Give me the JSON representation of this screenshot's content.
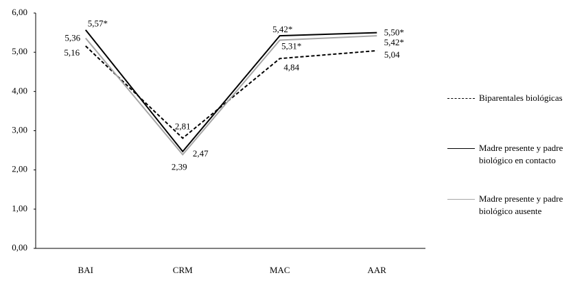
{
  "chart_data": {
    "type": "line",
    "categories": [
      "BAI",
      "CRM",
      "MAC",
      "AAR"
    ],
    "ylim": [
      0,
      6
    ],
    "yticks": [
      {
        "value": 0,
        "label": "0,00"
      },
      {
        "value": 1,
        "label": "1,00"
      },
      {
        "value": 2,
        "label": "2,00"
      },
      {
        "value": 3,
        "label": "3,00"
      },
      {
        "value": 4,
        "label": "4,00"
      },
      {
        "value": 5,
        "label": "5,00"
      },
      {
        "value": 6,
        "label": "6,00"
      }
    ],
    "grid": false,
    "legend": "right",
    "series": [
      {
        "name": "Biparentales biológicas",
        "color": "#000000",
        "dash": true,
        "values": [
          5.16,
          2.81,
          4.84,
          5.04
        ],
        "value_labels": [
          "5,16",
          "2,81",
          "4,84",
          "5,04"
        ]
      },
      {
        "name": "Madre presente y padre biológico en contacto",
        "color": "#000000",
        "dash": false,
        "values": [
          5.57,
          2.47,
          5.42,
          5.5
        ],
        "value_labels": [
          "5,57*",
          "2,47",
          "5,42*",
          "5,50*"
        ]
      },
      {
        "name": "Madre presente y padre biológico ausente",
        "color": "#a6a6a6",
        "dash": false,
        "values": [
          5.36,
          2.39,
          5.31,
          5.42
        ],
        "value_labels": [
          "5,36",
          "2,39",
          "5,31*",
          "5,42*"
        ]
      }
    ]
  }
}
